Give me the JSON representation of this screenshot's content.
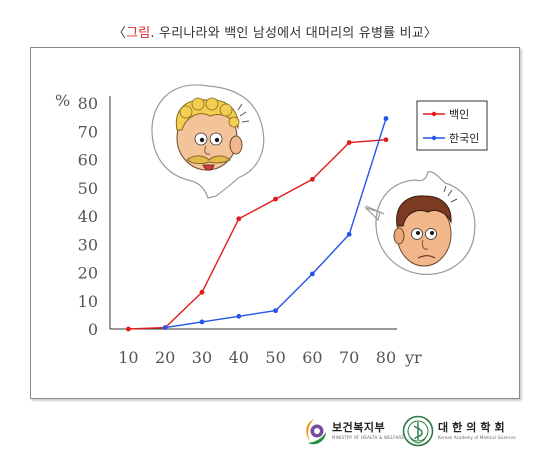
{
  "header": {
    "open_bracket": "〈",
    "title_accent": "그림",
    "title_rest": ". 우리나라와 백인 남성에서 대머리의 유병률 비교",
    "close_bracket": "〉"
  },
  "chart_data": {
    "type": "line",
    "title": "〈그림. 우리나라와 백인 남성에서 대머리의 유병률 비교〉",
    "y_unit_label": "%",
    "x_unit_label": "yr",
    "xlabel": "",
    "ylabel": "",
    "x_ticks": [
      10,
      20,
      30,
      40,
      50,
      60,
      70,
      80
    ],
    "y_ticks": [
      0,
      10,
      20,
      30,
      40,
      50,
      60,
      70,
      80
    ],
    "xlim": [
      5,
      83
    ],
    "ylim": [
      0,
      80
    ],
    "grid": false,
    "legend_position": "top-right",
    "series": [
      {
        "name": "백인",
        "color": "#e01b1b",
        "x": [
          10,
          20,
          30,
          40,
          50,
          60,
          70,
          80
        ],
        "y": [
          0,
          0.5,
          13,
          39,
          46,
          53,
          66,
          67
        ]
      },
      {
        "name": "한국인",
        "color": "#2554e8",
        "x": [
          20,
          30,
          40,
          50,
          60,
          70,
          80
        ],
        "y": [
          0.5,
          2.5,
          4.5,
          6.5,
          19.5,
          33.5,
          74.5
        ]
      }
    ]
  },
  "footer": {
    "ministry_name": "보건복지부",
    "ministry_sub": "MINISTRY OF HEALTH & WELFARE",
    "academy_name": "대한의학회",
    "academy_sub": "Korean Academy of Medical Sciences"
  }
}
